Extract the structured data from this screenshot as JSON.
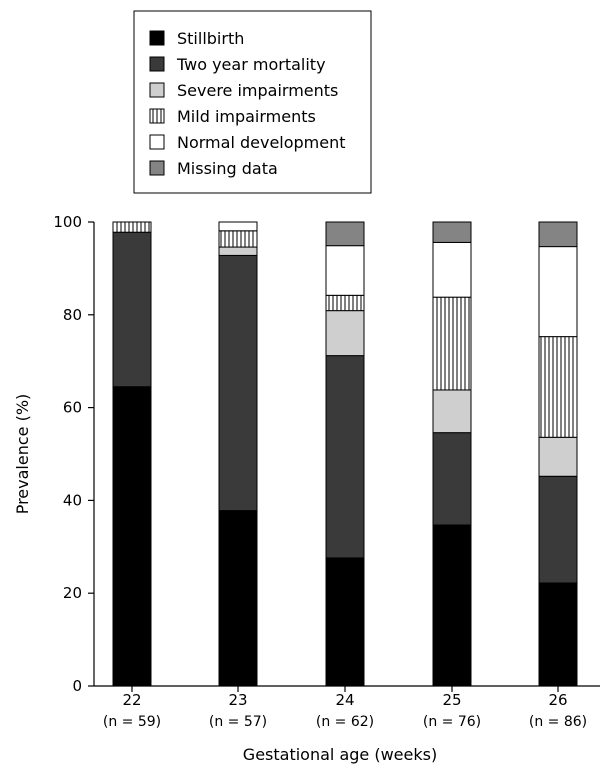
{
  "chart_data": {
    "type": "bar",
    "stacked": true,
    "title": "",
    "xlabel": "Gestational age (weeks)",
    "ylabel": "Prevalence (%)",
    "ylim": [
      0,
      100
    ],
    "yticks": [
      0,
      20,
      40,
      60,
      80,
      100
    ],
    "grid": false,
    "legend_position": "top-center",
    "categories": [
      "22",
      "23",
      "24",
      "25",
      "26"
    ],
    "sublabels": [
      "(n = 59)",
      "(n = 57)",
      "(n = 62)",
      "(n = 76)",
      "(n = 86)"
    ],
    "series": [
      {
        "name": "Stillbirth",
        "color": "#000000",
        "pattern": "solid",
        "values": [
          64.5,
          37.8,
          27.6,
          34.7,
          22.2
        ]
      },
      {
        "name": "Two year mortality",
        "color": "#3a3a3a",
        "pattern": "solid",
        "values": [
          33.3,
          55.0,
          43.6,
          19.9,
          23.0
        ]
      },
      {
        "name": "Severe impairments",
        "color": "#cfcfcf",
        "pattern": "solid",
        "values": [
          0,
          1.8,
          9.7,
          9.2,
          8.4
        ]
      },
      {
        "name": "Mild impairments",
        "color": "#ffffff",
        "pattern": "vertical-lines",
        "values": [
          2.2,
          3.5,
          3.3,
          20.0,
          21.7
        ]
      },
      {
        "name": "Normal development",
        "color": "#ffffff",
        "pattern": "solid",
        "values": [
          0,
          1.9,
          10.7,
          11.8,
          19.4
        ]
      },
      {
        "name": "Missing data",
        "color": "#848484",
        "pattern": "solid",
        "values": [
          0,
          0,
          5.1,
          4.4,
          5.3
        ]
      }
    ]
  }
}
